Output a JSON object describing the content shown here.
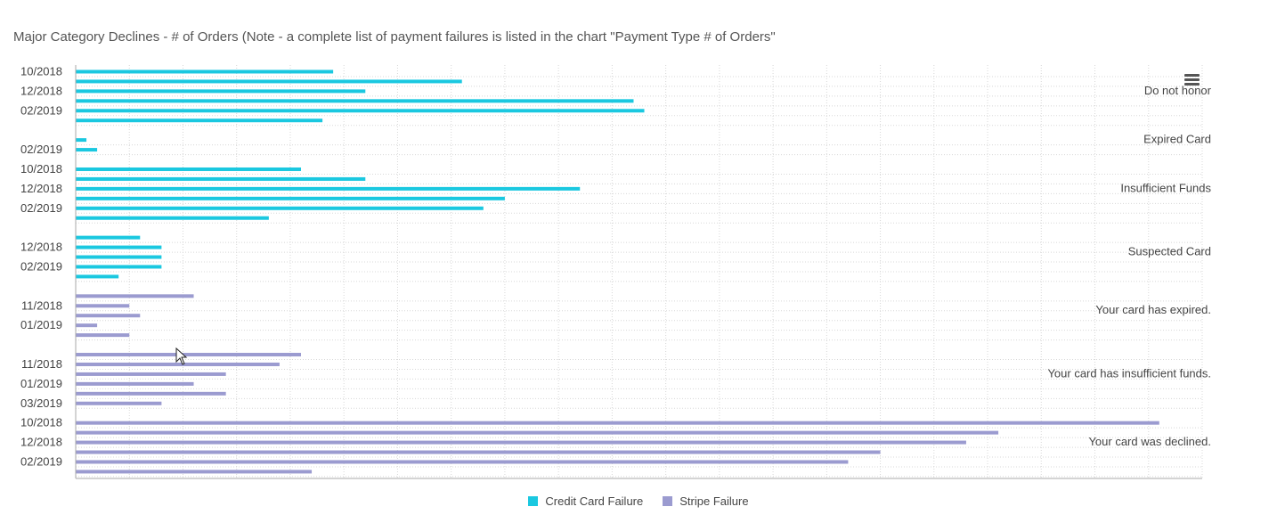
{
  "title": "Major Category Declines - # of Orders (Note - a complete list of payment failures is listed in the chart \"Payment Type # of Orders\"",
  "colors": {
    "credit": "#1ac8e0",
    "stripe": "#9b9bd0",
    "grid": "#d8d8d8",
    "axis": "#aaaaaa"
  },
  "legend": [
    {
      "name": "Credit Card Failure",
      "color": "#1ac8e0"
    },
    {
      "name": "Stripe Failure",
      "color": "#9b9bd0"
    }
  ],
  "chart_data": {
    "type": "bar",
    "orientation": "horizontal",
    "xlim": [
      0,
      105
    ],
    "grid": true,
    "legend_position": "bottom",
    "groups": [
      {
        "name": "Do not honor",
        "series": "Credit Card Failure",
        "bars": [
          {
            "label": "10/2018",
            "value": 24
          },
          {
            "label": "",
            "value": 36
          },
          {
            "label": "12/2018",
            "value": 27
          },
          {
            "label": "",
            "value": 52
          },
          {
            "label": "02/2019",
            "value": 53
          },
          {
            "label": "",
            "value": 23
          }
        ]
      },
      {
        "name": "Expired Card",
        "series": "Credit Card Failure",
        "bars": [
          {
            "label": "",
            "value": 1
          },
          {
            "label": "02/2019",
            "value": 2
          }
        ]
      },
      {
        "name": "Insufficient Funds",
        "series": "Credit Card Failure",
        "bars": [
          {
            "label": "10/2018",
            "value": 21
          },
          {
            "label": "",
            "value": 27
          },
          {
            "label": "12/2018",
            "value": 47
          },
          {
            "label": "",
            "value": 40
          },
          {
            "label": "02/2019",
            "value": 38
          },
          {
            "label": "",
            "value": 18
          }
        ]
      },
      {
        "name": "Suspected Card",
        "series": "Credit Card Failure",
        "bars": [
          {
            "label": "",
            "value": 6
          },
          {
            "label": "12/2018",
            "value": 8
          },
          {
            "label": "",
            "value": 8
          },
          {
            "label": "02/2019",
            "value": 8
          },
          {
            "label": "",
            "value": 4
          }
        ]
      },
      {
        "name": "Your card has expired.",
        "series": "Stripe Failure",
        "bars": [
          {
            "label": "",
            "value": 11
          },
          {
            "label": "11/2018",
            "value": 5
          },
          {
            "label": "",
            "value": 6
          },
          {
            "label": "01/2019",
            "value": 2
          },
          {
            "label": "",
            "value": 5
          }
        ]
      },
      {
        "name": "Your card has insufficient funds.",
        "series": "Stripe Failure",
        "bars": [
          {
            "label": "",
            "value": 21
          },
          {
            "label": "11/2018",
            "value": 19
          },
          {
            "label": "",
            "value": 14
          },
          {
            "label": "01/2019",
            "value": 11
          },
          {
            "label": "",
            "value": 14
          },
          {
            "label": "03/2019",
            "value": 8
          }
        ]
      },
      {
        "name": "Your card was declined.",
        "series": "Stripe Failure",
        "bars": [
          {
            "label": "10/2018",
            "value": 101
          },
          {
            "label": "",
            "value": 86
          },
          {
            "label": "12/2018",
            "value": 83
          },
          {
            "label": "",
            "value": 75
          },
          {
            "label": "02/2019",
            "value": 72
          },
          {
            "label": "",
            "value": 22
          }
        ]
      }
    ]
  }
}
